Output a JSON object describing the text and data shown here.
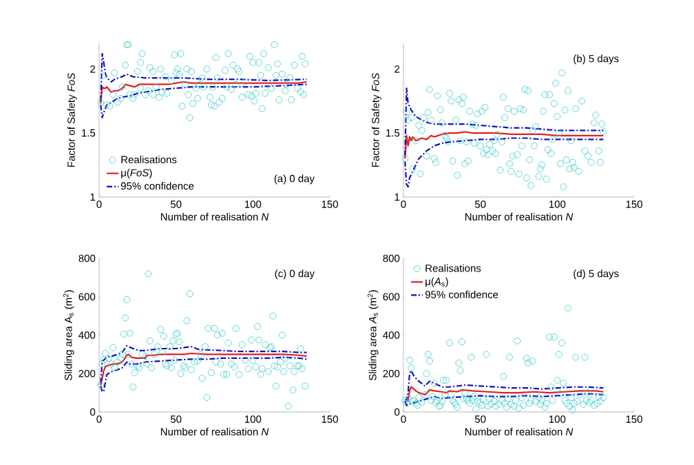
{
  "chart_data": [
    {
      "type": "scatter",
      "xlabel": "Number of realisation *N*",
      "ylabel": "Factor of Safety *FoS*",
      "annotations": [
        "(a) 0 day"
      ],
      "xlim": [
        0,
        150
      ],
      "ylim": [
        1,
        2.2
      ],
      "xticks": [
        0,
        50,
        100,
        150
      ],
      "yticks": [
        1,
        1.5,
        2
      ],
      "legend": "bottom left",
      "series": [
        {
          "name": "Realisations",
          "color": "#4fd0d0",
          "marker": "circle",
          "x": [
            1,
            3,
            5,
            7,
            9,
            10,
            12,
            14,
            15,
            17,
            18,
            19,
            20,
            22,
            23,
            25,
            27,
            27,
            28,
            30,
            32,
            33,
            35,
            35,
            37,
            39,
            40,
            41,
            43,
            44,
            47,
            49,
            50,
            51,
            52,
            53,
            54,
            56,
            57,
            58,
            59,
            60,
            61,
            63,
            64,
            65,
            67,
            68,
            70,
            72,
            73,
            74,
            75,
            76,
            77,
            78,
            80,
            82,
            83,
            84,
            86,
            87,
            89,
            90,
            91,
            93,
            95,
            97,
            98,
            99,
            100,
            101,
            102,
            104,
            105,
            106,
            107,
            108,
            110,
            112,
            114,
            115,
            116,
            117,
            119,
            121,
            122,
            124,
            125,
            127,
            129,
            131,
            132,
            133,
            134
          ],
          "values": [
            1.74,
            1.95,
            1.72,
            1.71,
            1.8,
            1.97,
            1.74,
            1.77,
            1.86,
            2.03,
            2.19,
            2.19,
            1.8,
            1.77,
            1.8,
            1.98,
            2.05,
            1.85,
            2.12,
            1.8,
            1.83,
            2.01,
            1.98,
            1.8,
            1.86,
            1.78,
            2.0,
            1.82,
            1.94,
            1.81,
            1.91,
            2.11,
            1.97,
            2.0,
            1.96,
            2.12,
            1.71,
            1.88,
            2.0,
            1.8,
            1.62,
            1.98,
            1.73,
            1.85,
            1.77,
            1.88,
            1.93,
            1.86,
            2.0,
            1.78,
            1.72,
            1.86,
            1.71,
            2.09,
            1.93,
            1.74,
            1.77,
            1.99,
            1.86,
            2.12,
            1.84,
            2.03,
            1.88,
            2.0,
            1.98,
            1.78,
            1.9,
            1.8,
            2.1,
            1.79,
            2.05,
            1.75,
            1.81,
            2.05,
            1.95,
            1.69,
            2.12,
            1.81,
            2.01,
            1.85,
            2.19,
            1.95,
            2.04,
            1.76,
            1.96,
            1.83,
            1.88,
            1.93,
            1.76,
            2.03,
            1.85,
            1.82,
            2.1,
            1.8,
            2.04
          ]
        },
        {
          "type": "line",
          "name": "μ(*FoS*)",
          "color": "#e02020",
          "marker": "none",
          "line_style": "solid",
          "x": [
            1,
            2,
            3,
            4,
            5,
            7,
            8,
            10,
            12,
            14,
            16,
            17,
            20,
            23,
            26,
            30,
            35,
            40,
            45,
            50,
            55,
            60,
            70,
            80,
            90,
            100,
            110,
            120,
            130,
            135
          ],
          "values": [
            1.73,
            1.86,
            1.85,
            1.85,
            1.86,
            1.83,
            1.82,
            1.83,
            1.83,
            1.84,
            1.86,
            1.88,
            1.87,
            1.86,
            1.88,
            1.88,
            1.88,
            1.88,
            1.88,
            1.89,
            1.9,
            1.89,
            1.89,
            1.89,
            1.89,
            1.89,
            1.89,
            1.89,
            1.89,
            1.9
          ]
        },
        {
          "type": "line",
          "name": "95% confidence",
          "color": "#1010c0",
          "marker": "none",
          "line_style": "dashed",
          "x": [
            1,
            2,
            3,
            4,
            5,
            8,
            10,
            15,
            18,
            22,
            30,
            40,
            55,
            70,
            90,
            110,
            135
          ],
          "values": [
            1.75,
            2.12,
            2.05,
            1.97,
            1.93,
            1.9,
            1.92,
            1.94,
            1.96,
            1.94,
            1.93,
            1.93,
            1.93,
            1.92,
            1.92,
            1.91,
            1.92
          ]
        },
        {
          "type": "line",
          "color": "#1010c0",
          "marker": "none",
          "line_style": "dashed",
          "x": [
            1,
            2,
            3,
            5,
            8,
            12,
            15,
            20,
            25,
            30,
            40,
            50,
            60,
            80,
            100,
            120,
            135
          ],
          "values": [
            1.72,
            1.62,
            1.66,
            1.72,
            1.74,
            1.77,
            1.78,
            1.79,
            1.81,
            1.82,
            1.84,
            1.85,
            1.86,
            1.86,
            1.86,
            1.87,
            1.88
          ]
        }
      ]
    },
    {
      "type": "scatter",
      "xlabel": "Number of realisation *N*",
      "ylabel": "Factor of Safety *FoS*",
      "annotations": [
        "(b) 5 days"
      ],
      "xlim": [
        0,
        150
      ],
      "ylim": [
        1,
        2.2
      ],
      "xticks": [
        0,
        50,
        100,
        150
      ],
      "yticks": [
        1,
        1.5,
        2
      ],
      "series": [
        {
          "color": "#4fd0d0",
          "marker": "circle",
          "x": [
            1,
            2,
            3,
            5,
            6,
            8,
            10,
            11,
            12,
            13,
            15,
            16,
            17,
            18,
            20,
            21,
            22,
            24,
            25,
            27,
            28,
            29,
            30,
            31,
            32,
            34,
            35,
            36,
            37,
            38,
            39,
            40,
            41,
            42,
            43,
            45,
            46,
            47,
            48,
            50,
            51,
            52,
            53,
            54,
            55,
            56,
            58,
            59,
            60,
            61,
            63,
            64,
            65,
            66,
            68,
            69,
            70,
            71,
            72,
            74,
            75,
            76,
            77,
            78,
            79,
            80,
            81,
            82,
            83,
            84,
            85,
            86,
            88,
            89,
            90,
            91,
            92,
            93,
            94,
            95,
            96,
            97,
            98,
            99,
            100,
            101,
            102,
            103,
            104,
            105,
            106,
            107,
            108,
            109,
            110,
            111,
            112,
            114,
            116,
            118,
            120,
            122,
            124,
            125,
            127,
            128,
            129,
            130
          ],
          "values": [
            1.3,
            1.66,
            1.6,
            1.62,
            1.22,
            1.44,
            1.56,
            1.18,
            1.52,
            1.62,
            1.32,
            1.66,
            1.84,
            1.6,
            1.3,
            1.27,
            1.79,
            1.68,
            1.58,
            1.48,
            1.46,
            1.43,
            1.81,
            1.75,
            1.28,
            1.6,
            1.17,
            1.76,
            1.44,
            1.73,
            1.78,
            1.26,
            1.43,
            1.28,
            1.67,
            1.57,
            1.42,
            1.56,
            1.65,
            1.4,
            1.67,
            1.34,
            1.7,
            1.37,
            1.33,
            1.41,
            1.36,
            1.44,
            1.34,
            1.49,
            1.21,
            1.43,
            1.78,
            1.62,
            1.69,
            1.26,
            1.2,
            1.32,
            1.67,
            1.33,
            1.18,
            1.69,
            1.4,
            1.68,
            1.84,
            1.15,
            1.83,
            1.29,
            1.09,
            1.52,
            1.4,
            1.55,
            1.16,
            1.22,
            1.25,
            1.67,
            1.8,
            1.14,
            1.37,
            1.8,
            1.34,
            1.45,
            1.73,
            1.89,
            1.63,
            1.5,
            1.26,
            1.97,
            1.08,
            1.68,
            1.29,
            1.83,
            1.22,
            1.44,
            1.27,
            1.23,
            1.69,
            1.2,
            1.75,
            1.36,
            1.32,
            1.27,
            1.58,
            1.64,
            1.36,
            1.27,
            1.57,
            1.51
          ]
        },
        {
          "type": "line",
          "color": "#e02020",
          "marker": "none",
          "line_style": "solid",
          "x": [
            1,
            2,
            3,
            4,
            5,
            6,
            8,
            10,
            12,
            15,
            18,
            20,
            25,
            30,
            35,
            40,
            45,
            50,
            60,
            70,
            80,
            90,
            100,
            110,
            120,
            130
          ],
          "values": [
            1.3,
            1.48,
            1.4,
            1.47,
            1.44,
            1.47,
            1.44,
            1.45,
            1.46,
            1.45,
            1.48,
            1.47,
            1.49,
            1.5,
            1.5,
            1.51,
            1.5,
            1.5,
            1.5,
            1.49,
            1.49,
            1.49,
            1.48,
            1.48,
            1.48,
            1.48
          ]
        },
        {
          "type": "line",
          "color": "#1010c0",
          "marker": "none",
          "line_style": "dashed",
          "x": [
            1,
            2,
            3,
            5,
            8,
            12,
            16,
            20,
            30,
            40,
            50,
            60,
            70,
            80,
            90,
            100,
            110,
            120,
            130
          ],
          "values": [
            1.32,
            1.85,
            1.73,
            1.68,
            1.63,
            1.6,
            1.58,
            1.57,
            1.57,
            1.57,
            1.56,
            1.55,
            1.54,
            1.54,
            1.53,
            1.52,
            1.52,
            1.52,
            1.52
          ]
        },
        {
          "type": "line",
          "color": "#1010c0",
          "marker": "none",
          "line_style": "dashed",
          "x": [
            1,
            2,
            3,
            4,
            6,
            10,
            15,
            20,
            25,
            30,
            40,
            50,
            60,
            70,
            80,
            90,
            100,
            110,
            120,
            130
          ],
          "values": [
            1.28,
            1.1,
            1.08,
            1.15,
            1.2,
            1.3,
            1.36,
            1.4,
            1.42,
            1.43,
            1.44,
            1.45,
            1.45,
            1.46,
            1.46,
            1.45,
            1.45,
            1.45,
            1.45,
            1.45
          ]
        }
      ]
    },
    {
      "type": "scatter",
      "xlabel": "Number of realisation *N*",
      "ylabel": "Sliding area  A$_{s}$ (m$^{2}$)",
      "annotations": [
        "(c) 0 day"
      ],
      "xlim": [
        0,
        150
      ],
      "ylim": [
        0,
        800
      ],
      "xticks": [
        0,
        50,
        100,
        150
      ],
      "yticks": [
        0,
        200,
        400,
        600,
        800
      ],
      "series": [
        {
          "color": "#4fd0d0",
          "marker": "circle",
          "x": [
            1,
            2,
            3,
            4,
            6,
            8,
            9,
            10,
            12,
            14,
            15,
            16,
            17,
            18,
            19,
            20,
            21,
            22,
            23,
            25,
            26,
            28,
            30,
            31,
            32,
            33,
            34,
            36,
            38,
            40,
            41,
            42,
            43,
            44,
            46,
            47,
            48,
            49,
            50,
            51,
            52,
            53,
            55,
            56,
            57,
            59,
            60,
            62,
            64,
            66,
            67,
            69,
            70,
            71,
            73,
            75,
            76,
            77,
            79,
            80,
            81,
            83,
            84,
            86,
            88,
            89,
            91,
            93,
            95,
            97,
            99,
            100,
            102,
            103,
            104,
            105,
            106,
            108,
            110,
            111,
            112,
            113,
            114,
            115,
            116,
            118,
            119,
            120,
            121,
            123,
            124,
            126,
            127,
            129,
            130,
            131,
            132,
            134
          ],
          "values": [
            140,
            250,
            270,
            305,
            280,
            250,
            335,
            230,
            260,
            280,
            300,
            405,
            490,
            585,
            300,
            410,
            250,
            130,
            205,
            240,
            230,
            300,
            290,
            250,
            720,
            370,
            230,
            300,
            340,
            430,
            310,
            395,
            250,
            240,
            340,
            230,
            370,
            270,
            405,
            410,
            365,
            200,
            240,
            230,
            475,
            615,
            220,
            260,
            265,
            300,
            175,
            340,
            75,
            435,
            205,
            435,
            260,
            400,
            250,
            410,
            195,
            195,
            360,
            250,
            235,
            435,
            195,
            350,
            270,
            225,
            375,
            270,
            235,
            445,
            375,
            195,
            225,
            350,
            210,
            335,
            340,
            500,
            240,
            135,
            235,
            260,
            400,
            210,
            280,
            30,
            240,
            115,
            210,
            240,
            240,
            330,
            225,
            135
          ]
        },
        {
          "type": "line",
          "color": "#e02020",
          "marker": "none",
          "line_style": "solid",
          "x": [
            1,
            2,
            3,
            4,
            5,
            7,
            9,
            11,
            14,
            16,
            18,
            19,
            21,
            24,
            27,
            30,
            31,
            35,
            40,
            50,
            55,
            60,
            70,
            80,
            90,
            100,
            110,
            120,
            130,
            135
          ],
          "values": [
            140,
            175,
            215,
            235,
            240,
            245,
            250,
            250,
            255,
            270,
            295,
            300,
            285,
            280,
            280,
            280,
            295,
            295,
            300,
            300,
            300,
            305,
            300,
            300,
            300,
            300,
            300,
            300,
            295,
            290
          ]
        },
        {
          "type": "line",
          "color": "#1010c0",
          "marker": "none",
          "line_style": "dashed",
          "x": [
            1,
            2,
            3,
            5,
            8,
            12,
            15,
            18,
            22,
            26,
            30,
            35,
            40,
            50,
            60,
            65,
            80,
            90,
            100,
            110,
            120,
            130,
            135
          ],
          "values": [
            150,
            265,
            270,
            285,
            290,
            300,
            310,
            345,
            330,
            320,
            320,
            325,
            330,
            330,
            340,
            325,
            320,
            315,
            315,
            315,
            315,
            310,
            310
          ]
        },
        {
          "type": "line",
          "color": "#1010c0",
          "marker": "none",
          "line_style": "dashed",
          "x": [
            1,
            2,
            3,
            5,
            8,
            12,
            15,
            18,
            20,
            25,
            30,
            40,
            50,
            60,
            70,
            80,
            90,
            100,
            110,
            120,
            130,
            135
          ],
          "values": [
            135,
            105,
            110,
            195,
            210,
            220,
            230,
            260,
            250,
            250,
            260,
            265,
            270,
            275,
            275,
            280,
            280,
            280,
            280,
            285,
            280,
            275
          ]
        }
      ]
    },
    {
      "type": "scatter",
      "xlabel": "Number of realisation *N*",
      "ylabel": "Sliding area *A*$_{s}$ (m$^{2}$)",
      "annotations": [
        "(d) 5 days"
      ],
      "xlim": [
        0,
        150
      ],
      "ylim": [
        0,
        800
      ],
      "xticks": [
        0,
        50,
        100,
        150
      ],
      "yticks": [
        0,
        200,
        400,
        600,
        800
      ],
      "legend": "top left",
      "series": [
        {
          "name": "Realisations",
          "color": "#4fd0d0",
          "marker": "circle",
          "x": [
            1,
            2,
            3,
            4,
            5,
            6,
            7,
            8,
            9,
            10,
            12,
            14,
            15,
            16,
            17,
            18,
            19,
            20,
            21,
            22,
            23,
            24,
            25,
            26,
            27,
            28,
            30,
            31,
            32,
            33,
            34,
            35,
            36,
            37,
            38,
            39,
            40,
            41,
            42,
            43,
            44,
            45,
            46,
            47,
            48,
            50,
            51,
            52,
            54,
            55,
            56,
            57,
            59,
            60,
            62,
            64,
            65,
            66,
            67,
            68,
            69,
            70,
            72,
            73,
            74,
            75,
            77,
            78,
            80,
            81,
            82,
            83,
            84,
            86,
            88,
            89,
            90,
            92,
            93,
            95,
            96,
            97,
            98,
            100,
            101,
            102,
            103,
            104,
            105,
            106,
            107,
            108,
            109,
            110,
            111,
            112,
            113,
            115,
            117,
            118,
            119,
            120,
            121,
            122,
            124,
            126,
            127,
            128,
            130
          ],
          "values": [
            60,
            45,
            70,
            270,
            230,
            55,
            60,
            45,
            35,
            75,
            50,
            90,
            200,
            300,
            265,
            60,
            80,
            150,
            50,
            60,
            30,
            35,
            55,
            165,
            90,
            165,
            360,
            85,
            60,
            50,
            40,
            25,
            255,
            215,
            365,
            70,
            95,
            70,
            60,
            45,
            285,
            60,
            80,
            15,
            55,
            50,
            35,
            65,
            300,
            30,
            70,
            40,
            55,
            30,
            40,
            60,
            185,
            45,
            25,
            70,
            285,
            40,
            30,
            60,
            370,
            20,
            75,
            35,
            280,
            255,
            45,
            60,
            265,
            55,
            75,
            40,
            60,
            25,
            45,
            390,
            130,
            60,
            390,
            165,
            300,
            95,
            360,
            150,
            60,
            45,
            540,
            30,
            75,
            10,
            45,
            285,
            55,
            90,
            40,
            285,
            60,
            100,
            50,
            60,
            35,
            45,
            80,
            55,
            75
          ]
        },
        {
          "type": "line",
          "name": "μ(*A*$_{s}$)",
          "color": "#e02020",
          "marker": "none",
          "line_style": "solid",
          "x": [
            1,
            2,
            3,
            4,
            5,
            6,
            8,
            10,
            12,
            14,
            16,
            17,
            20,
            25,
            28,
            30,
            35,
            38,
            45,
            55,
            65,
            75,
            85,
            95,
            105,
            115,
            125,
            130
          ],
          "values": [
            60,
            60,
            55,
            110,
            130,
            125,
            110,
            100,
            95,
            90,
            105,
            115,
            110,
            105,
            100,
            110,
            105,
            115,
            110,
            105,
            100,
            100,
            105,
            100,
            105,
            110,
            110,
            105
          ]
        },
        {
          "type": "line",
          "name": "95% confidence",
          "color": "#1010c0",
          "marker": "none",
          "line_style": "dashed",
          "x": [
            1,
            2,
            3,
            4,
            5,
            7,
            10,
            14,
            17,
            20,
            25,
            30,
            35,
            40,
            50,
            60,
            70,
            80,
            90,
            100,
            110,
            120,
            130
          ],
          "values": [
            65,
            60,
            100,
            200,
            215,
            185,
            160,
            135,
            160,
            150,
            130,
            130,
            135,
            140,
            135,
            130,
            125,
            125,
            120,
            125,
            130,
            130,
            125
          ]
        },
        {
          "type": "line",
          "color": "#1010c0",
          "marker": "none",
          "line_style": "dashed",
          "x": [
            1,
            2,
            3,
            5,
            8,
            12,
            16,
            20,
            25,
            30,
            40,
            50,
            60,
            70,
            80,
            90,
            100,
            110,
            120,
            130
          ],
          "values": [
            55,
            35,
            40,
            45,
            50,
            60,
            70,
            80,
            70,
            75,
            80,
            85,
            80,
            80,
            85,
            80,
            85,
            90,
            95,
            90
          ]
        }
      ]
    }
  ]
}
